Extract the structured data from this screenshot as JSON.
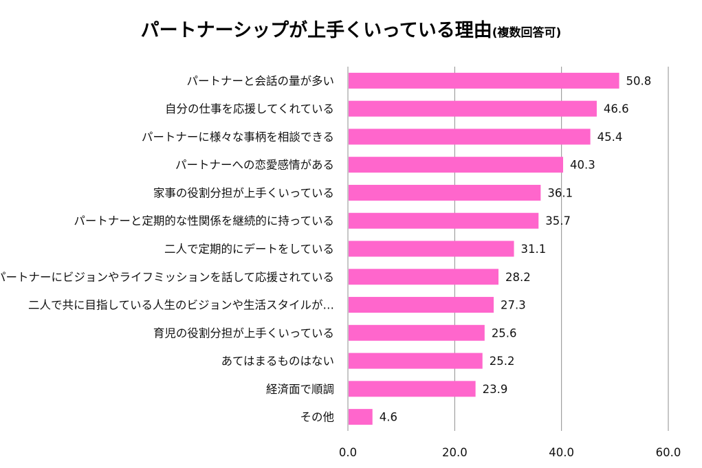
{
  "chart_data": {
    "type": "bar",
    "orientation": "horizontal",
    "title": "パートナーシップが上手くいっている理由",
    "subtitle": "(複数回答可)",
    "categories": [
      "パートナーと会話の量が多い",
      "自分の仕事を応援してくれている",
      "パートナーに様々な事柄を相談できる",
      "パートナーへの恋愛感情がある",
      "家事の役割分担が上手くいっている",
      "パートナーと定期的な性関係を継続的に持っている",
      "二人で定期的にデートをしている",
      "パートナーにビジョンやライフミッションを話して応援されている",
      "二人で共に目指している人生のビジョンや生活スタイルが…",
      "育児の役割分担が上手くいっている",
      "あてはまるものはない",
      "経済面で順調",
      "その他"
    ],
    "values": [
      50.8,
      46.6,
      45.4,
      40.3,
      36.1,
      35.7,
      31.1,
      28.2,
      27.3,
      25.6,
      25.2,
      23.9,
      4.6
    ],
    "value_labels": [
      "50.8",
      "46.6",
      "45.4",
      "40.3",
      "36.1",
      "35.7",
      "31.1",
      "28.2",
      "27.3",
      "25.6",
      "25.2",
      "23.9",
      "4.6"
    ],
    "xlim": [
      0,
      60
    ],
    "xticks": [
      "0.0",
      "20.0",
      "40.0",
      "60.0"
    ],
    "xtick_values": [
      0,
      20,
      40,
      60
    ],
    "grid": "vertical",
    "bar_color": "#ff66cc",
    "grid_color": "#8c8c8c",
    "xlabel": "",
    "ylabel": ""
  }
}
